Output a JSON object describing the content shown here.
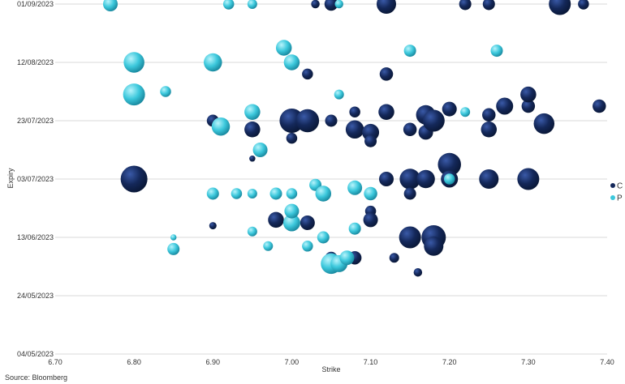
{
  "chart_data": {
    "type": "scatter",
    "title": "",
    "xlabel": "Strike",
    "ylabel": "Expiry",
    "xlim": [
      6.7,
      7.4
    ],
    "x_ticks": [
      "6.70",
      "6.80",
      "6.90",
      "7.00",
      "7.10",
      "7.20",
      "7.30",
      "7.40"
    ],
    "y_ticks": [
      "01/09/2023",
      "12/08/2023",
      "23/07/2023",
      "03/07/2023",
      "13/06/2023",
      "24/05/2023",
      "04/05/2023"
    ],
    "ylim": [
      "04/05/2023",
      "01/09/2023"
    ],
    "grid": "horizontal",
    "legend": "right",
    "colors": {
      "C": "#14285a",
      "P": "#3cc8dc"
    },
    "series": [
      {
        "name": "C",
        "points": [
          [
            6.8,
            "03/07/2023",
            22
          ],
          [
            6.9,
            "23/07/2023",
            10
          ],
          [
            6.9,
            "17/06/2023",
            6
          ],
          [
            6.95,
            "20/07/2023",
            13
          ],
          [
            6.95,
            "10/07/2023",
            5
          ],
          [
            6.98,
            "19/06/2023",
            13
          ],
          [
            7.0,
            "23/07/2023",
            20
          ],
          [
            7.02,
            "23/07/2023",
            19
          ],
          [
            7.0,
            "17/07/2023",
            9
          ],
          [
            7.02,
            "08/08/2023",
            9
          ],
          [
            7.02,
            "18/06/2023",
            12
          ],
          [
            7.05,
            "23/07/2023",
            10
          ],
          [
            7.03,
            "01/09/2023",
            7
          ],
          [
            7.05,
            "01/09/2023",
            11
          ],
          [
            7.08,
            "26/07/2023",
            9
          ],
          [
            7.08,
            "20/07/2023",
            15
          ],
          [
            7.1,
            "19/07/2023",
            14
          ],
          [
            7.1,
            "16/07/2023",
            10
          ],
          [
            7.1,
            "22/06/2023",
            9
          ],
          [
            7.1,
            "19/06/2023",
            12
          ],
          [
            7.12,
            "26/07/2023",
            13
          ],
          [
            7.12,
            "08/08/2023",
            11
          ],
          [
            7.12,
            "01/09/2023",
            16
          ],
          [
            7.12,
            "03/07/2023",
            12
          ],
          [
            7.15,
            "20/07/2023",
            11
          ],
          [
            7.15,
            "03/07/2023",
            17
          ],
          [
            7.15,
            "28/06/2023",
            10
          ],
          [
            7.15,
            "13/06/2023",
            18
          ],
          [
            7.17,
            "03/07/2023",
            15
          ],
          [
            7.17,
            "19/07/2023",
            12
          ],
          [
            7.17,
            "25/07/2023",
            16
          ],
          [
            7.18,
            "23/07/2023",
            18
          ],
          [
            7.18,
            "13/06/2023",
            20
          ],
          [
            7.18,
            "10/06/2023",
            16
          ],
          [
            7.2,
            "08/07/2023",
            19
          ],
          [
            7.2,
            "03/07/2023",
            14
          ],
          [
            7.2,
            "27/07/2023",
            12
          ],
          [
            7.22,
            "01/09/2023",
            10
          ],
          [
            7.25,
            "01/09/2023",
            10
          ],
          [
            7.25,
            "03/07/2023",
            16
          ],
          [
            7.25,
            "25/07/2023",
            11
          ],
          [
            7.25,
            "20/07/2023",
            13
          ],
          [
            7.27,
            "28/07/2023",
            14
          ],
          [
            7.3,
            "03/07/2023",
            18
          ],
          [
            7.3,
            "28/07/2023",
            11
          ],
          [
            7.32,
            "22/07/2023",
            17
          ],
          [
            7.3,
            "01/08/2023",
            13
          ],
          [
            7.34,
            "01/09/2023",
            18
          ],
          [
            7.39,
            "28/07/2023",
            11
          ],
          [
            7.37,
            "01/09/2023",
            9
          ],
          [
            7.05,
            "06/06/2023",
            10
          ],
          [
            7.08,
            "06/06/2023",
            11
          ],
          [
            7.13,
            "06/06/2023",
            8
          ],
          [
            7.16,
            "01/06/2023",
            7
          ]
        ]
      },
      {
        "name": "P",
        "points": [
          [
            6.77,
            "01/09/2023",
            12
          ],
          [
            6.8,
            "12/08/2023",
            17
          ],
          [
            6.8,
            "01/08/2023",
            18
          ],
          [
            6.84,
            "02/08/2023",
            9
          ],
          [
            6.85,
            "13/06/2023",
            5
          ],
          [
            6.85,
            "09/06/2023",
            10
          ],
          [
            6.9,
            "12/08/2023",
            15
          ],
          [
            6.91,
            "21/07/2023",
            15
          ],
          [
            6.92,
            "01/09/2023",
            9
          ],
          [
            6.9,
            "28/06/2023",
            10
          ],
          [
            6.93,
            "28/06/2023",
            9
          ],
          [
            6.95,
            "26/07/2023",
            13
          ],
          [
            6.95,
            "01/09/2023",
            8
          ],
          [
            6.95,
            "15/06/2023",
            8
          ],
          [
            6.95,
            "28/06/2023",
            8
          ],
          [
            6.96,
            "13/07/2023",
            12
          ],
          [
            6.98,
            "28/06/2023",
            10
          ],
          [
            6.99,
            "17/08/2023",
            13
          ],
          [
            7.0,
            "12/08/2023",
            13
          ],
          [
            7.0,
            "18/06/2023",
            14
          ],
          [
            7.0,
            "22/06/2023",
            12
          ],
          [
            7.0,
            "28/06/2023",
            9
          ],
          [
            7.03,
            "01/07/2023",
            10
          ],
          [
            7.04,
            "28/06/2023",
            13
          ],
          [
            7.04,
            "13/06/2023",
            10
          ],
          [
            7.05,
            "04/06/2023",
            17
          ],
          [
            7.06,
            "04/06/2023",
            14
          ],
          [
            7.07,
            "06/06/2023",
            12
          ],
          [
            7.08,
            "30/06/2023",
            12
          ],
          [
            7.08,
            "16/06/2023",
            10
          ],
          [
            7.1,
            "28/06/2023",
            11
          ],
          [
            7.06,
            "01/08/2023",
            8
          ],
          [
            7.06,
            "01/09/2023",
            7
          ],
          [
            7.15,
            "16/08/2023",
            10
          ],
          [
            7.2,
            "03/07/2023",
            9
          ],
          [
            7.22,
            "26/07/2023",
            8
          ],
          [
            7.26,
            "16/08/2023",
            10
          ],
          [
            6.97,
            "10/06/2023",
            8
          ],
          [
            7.02,
            "10/06/2023",
            9
          ]
        ]
      }
    ],
    "legend_entries": [
      "C",
      "P"
    ]
  },
  "source": "Source: Bloomberg"
}
